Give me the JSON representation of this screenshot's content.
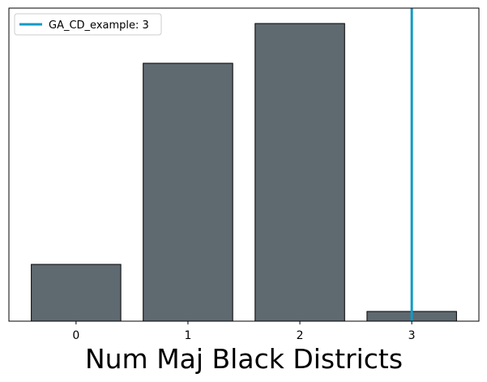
{
  "chart_data": {
    "type": "bar",
    "categories": [
      "0",
      "1",
      "2",
      "3"
    ],
    "values": [
      70,
      318,
      367,
      12
    ],
    "title": "",
    "xlabel": "Num Maj Black Districts",
    "ylabel": "",
    "ylim": [
      0,
      386
    ],
    "xlim": [
      -0.6,
      3.6
    ],
    "y_ticks_visible": false,
    "grid": false,
    "bar_color": "#5f6970",
    "bar_edge_color": "#000000",
    "reference_line": {
      "x": 3,
      "label": "GA_CD_example: 3",
      "color": "#109bc4"
    },
    "legend": {
      "placement": "top-left",
      "entries": [
        "GA_CD_example: 3"
      ]
    }
  }
}
